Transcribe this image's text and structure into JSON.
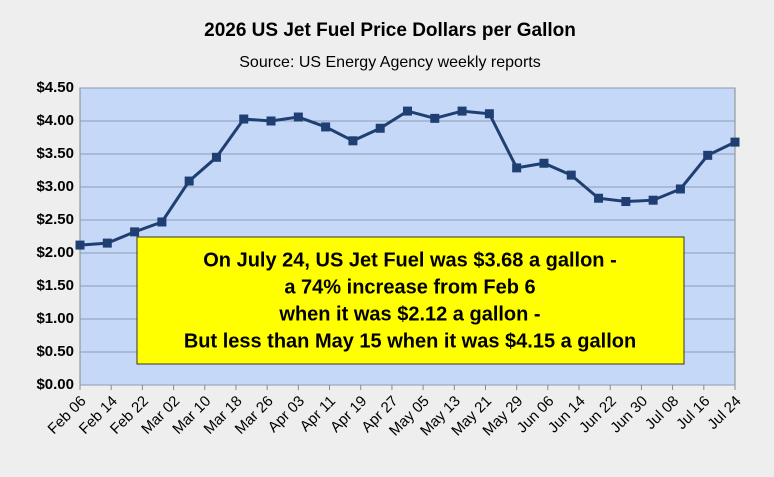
{
  "chart_data": {
    "type": "line",
    "title": "2026 US Jet Fuel Price Dollars per Gallon",
    "subtitle": "Source: US Energy Agency weekly reports",
    "annotation": [
      "On July 24, US Jet Fuel was $3.68 a gallon -",
      "a 74% increase from Feb 6",
      "when it was $2.12 a gallon -",
      "But less than May 15 when it was $4.15 a gallon"
    ],
    "x": [
      0,
      7,
      14,
      21,
      28,
      35,
      42,
      49,
      56,
      63,
      70,
      77,
      84,
      91,
      98,
      105,
      112,
      119,
      126,
      133,
      140,
      147,
      154,
      161,
      168
    ],
    "series": [
      {
        "name": "Jet Fuel",
        "color": "#1f3f73",
        "values": [
          2.12,
          2.15,
          2.32,
          2.47,
          3.09,
          3.45,
          4.03,
          4.0,
          4.06,
          3.91,
          3.7,
          3.89,
          4.15,
          4.04,
          4.15,
          4.11,
          3.29,
          3.36,
          3.18,
          2.83,
          2.78,
          2.8,
          2.97,
          3.48,
          3.68
        ]
      }
    ],
    "xlim": [
      0,
      168
    ],
    "xticks": [
      {
        "value": 0,
        "label": "Feb 06"
      },
      {
        "value": 8,
        "label": "Feb 14"
      },
      {
        "value": 16,
        "label": "Feb 22"
      },
      {
        "value": 24,
        "label": "Mar 02"
      },
      {
        "value": 32,
        "label": "Mar 10"
      },
      {
        "value": 40,
        "label": "Mar 18"
      },
      {
        "value": 48,
        "label": "Mar 26"
      },
      {
        "value": 56,
        "label": "Apr 03"
      },
      {
        "value": 64,
        "label": "Apr 11"
      },
      {
        "value": 72,
        "label": "Apr 19"
      },
      {
        "value": 80,
        "label": "Apr 27"
      },
      {
        "value": 88,
        "label": "May 05"
      },
      {
        "value": 96,
        "label": "May 13"
      },
      {
        "value": 104,
        "label": "May 21"
      },
      {
        "value": 112,
        "label": "May 29"
      },
      {
        "value": 120,
        "label": "Jun 06"
      },
      {
        "value": 128,
        "label": "Jun 14"
      },
      {
        "value": 136,
        "label": "Jun 22"
      },
      {
        "value": 144,
        "label": "Jun 30"
      },
      {
        "value": 152,
        "label": "Jul 08"
      },
      {
        "value": 160,
        "label": "Jul 16"
      },
      {
        "value": 168,
        "label": "Jul 24"
      }
    ],
    "ylim": [
      0,
      4.5
    ],
    "yticks": [
      {
        "value": 0,
        "label": "$0.00"
      },
      {
        "value": 0.5,
        "label": "$0.50"
      },
      {
        "value": 1,
        "label": "$1.00"
      },
      {
        "value": 1.5,
        "label": "$1.50"
      },
      {
        "value": 2,
        "label": "$2.00"
      },
      {
        "value": 2.5,
        "label": "$2.50"
      },
      {
        "value": 3,
        "label": "$3.00"
      },
      {
        "value": 3.5,
        "label": "$3.50"
      },
      {
        "value": 4,
        "label": "$4.00"
      },
      {
        "value": 4.5,
        "label": "$4.50"
      }
    ],
    "grid": true
  }
}
